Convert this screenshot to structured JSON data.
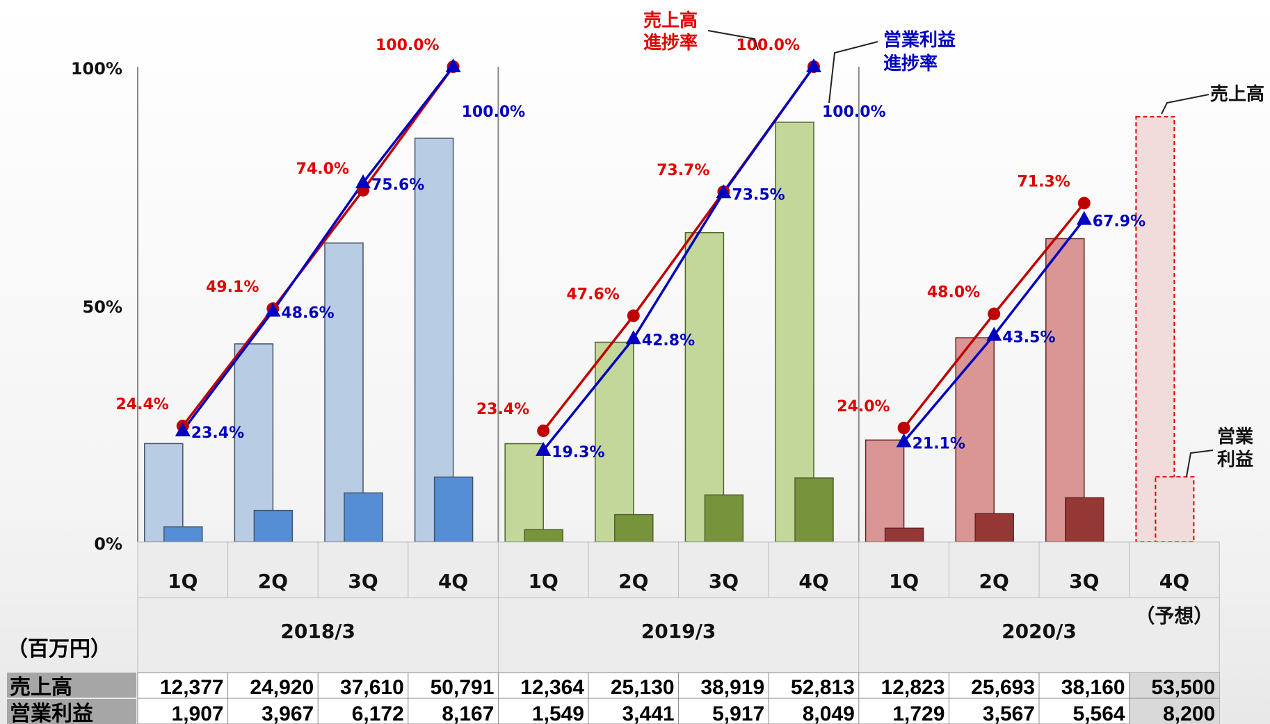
{
  "unit_label": "（百万円）",
  "chart_data": {
    "type": "bar",
    "yaxis": {
      "ticks": [
        "0%",
        "50%",
        "100%"
      ],
      "ylim": [
        0,
        100
      ]
    },
    "groups": [
      {
        "period": "2018/3",
        "color_sales": "#b8cce4",
        "color_profit": "#558ed5",
        "stroke": "#44546a",
        "quarters": [
          "1Q",
          "2Q",
          "3Q",
          "4Q"
        ],
        "sales": [
          "12,377",
          "24,920",
          "37,610",
          "50,791"
        ],
        "profit": [
          "1,907",
          "3,967",
          "6,172",
          "8,167"
        ],
        "sales_rate": [
          24.4,
          49.1,
          74.0,
          100.0
        ],
        "sales_rate_labels": [
          "24.4%",
          "49.1%",
          "74.0%",
          "100.0%"
        ],
        "profit_rate": [
          23.4,
          48.6,
          75.6,
          100.0
        ],
        "profit_rate_labels": [
          "23.4%",
          "48.6%",
          "75.6%",
          "100.0%"
        ]
      },
      {
        "period": "2019/3",
        "color_sales": "#c4d79b",
        "color_profit": "#77933c",
        "stroke": "#4f6228",
        "quarters": [
          "1Q",
          "2Q",
          "3Q",
          "4Q"
        ],
        "sales": [
          "12,364",
          "25,130",
          "38,919",
          "52,813"
        ],
        "profit": [
          "1,549",
          "3,441",
          "5,917",
          "8,049"
        ],
        "sales_rate": [
          23.4,
          47.6,
          73.7,
          100.0
        ],
        "sales_rate_labels": [
          "23.4%",
          "47.6%",
          "73.7%",
          "100.0%"
        ],
        "profit_rate": [
          19.3,
          42.8,
          73.5,
          100.0
        ],
        "profit_rate_labels": [
          "19.3%",
          "42.8%",
          "73.5%",
          "100.0%"
        ]
      },
      {
        "period": "2020/3",
        "color_sales": "#d99694",
        "color_profit": "#953735",
        "stroke": "#632523",
        "quarters": [
          "1Q",
          "2Q",
          "3Q",
          "4Q"
        ],
        "forecast_label": "（予想）",
        "sales": [
          "12,823",
          "25,693",
          "38,160",
          "53,500"
        ],
        "profit": [
          "1,729",
          "3,567",
          "5,564",
          "8,200"
        ],
        "sales_rate": [
          24.0,
          48.0,
          71.3
        ],
        "sales_rate_labels": [
          "24.0%",
          "48.0%",
          "71.3%"
        ],
        "profit_rate": [
          21.1,
          43.5,
          67.9
        ],
        "profit_rate_labels": [
          "21.1%",
          "43.5%",
          "67.9%"
        ]
      }
    ],
    "line_colors": {
      "sales_rate": "#c00000",
      "profit_rate": "#0000c0"
    }
  },
  "callouts": {
    "sales_rate": [
      "売上高",
      "進捗率"
    ],
    "profit_rate": [
      "営業利益",
      "進捗率"
    ],
    "sales_bar": "売上高",
    "profit_bar": [
      "営業",
      "利益"
    ]
  },
  "table": {
    "row_labels": [
      "売上高",
      "営業利益"
    ]
  }
}
